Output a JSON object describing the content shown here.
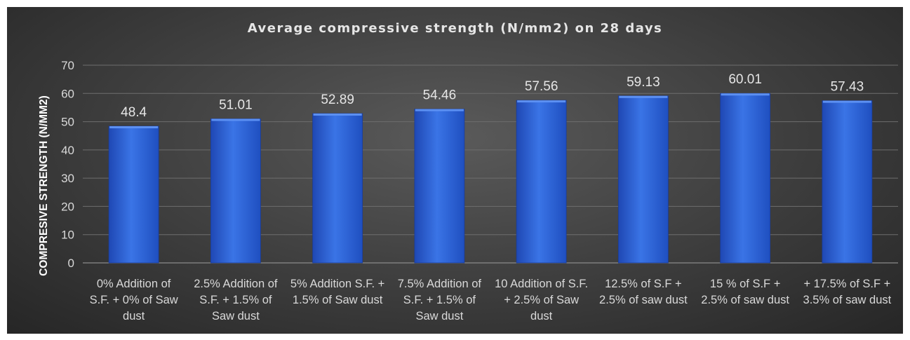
{
  "chart_data": {
    "type": "bar",
    "title": "Average compressive strength (N/mm2)  on 28 days",
    "ylabel": "COMPRESIVE STRENGTH (N/MM2)",
    "xlabel": "",
    "ylim": [
      0,
      70
    ],
    "yticks": [
      "0",
      "10",
      "20",
      "30",
      "40",
      "50",
      "60",
      "70"
    ],
    "grid": true,
    "legend": "none",
    "bar_color": "#2f64d6",
    "categories": [
      "0% Addition of S.F. + 0% of Saw dust",
      "2.5% Addition of S.F. + 1.5% of Saw dust",
      "5% Addition S.F. + 1.5% of Saw dust",
      "7.5% Addition of S.F. + 1.5% of Saw dust",
      "10 Addition of S.F. + 2.5% of Saw dust",
      "12.5% of S.F + 2.5% of saw dust",
      "15 % of S.F + 2.5% of saw dust",
      "+ 17.5% of S.F + 3.5% of saw dust"
    ],
    "values": [
      48.4,
      51.01,
      52.89,
      54.46,
      57.56,
      59.13,
      60.01,
      57.43
    ],
    "data_labels": [
      "48.4",
      "51.01",
      "52.89",
      "54.46",
      "57.56",
      "59.13",
      "60.01",
      "57.43"
    ]
  }
}
